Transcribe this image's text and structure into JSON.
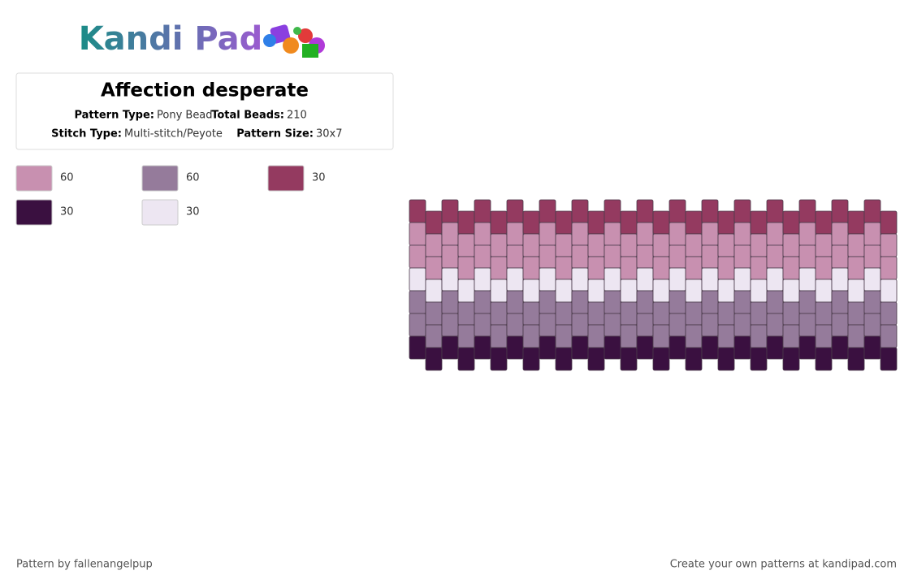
{
  "header": {
    "logo": "Kandi Pad"
  },
  "pattern": {
    "title": "Affection desperate",
    "info": [
      {
        "label": "Pattern Type:",
        "value": "Pony Bead"
      },
      {
        "label": "Total Beads:",
        "value": "210"
      },
      {
        "label": "Stitch Type:",
        "value": "Multi-stitch/Peyote"
      },
      {
        "label": "Pattern Size:",
        "value": "30x7"
      }
    ],
    "palette": [
      {
        "color": "#c890b0",
        "count": 60
      },
      {
        "color": "#957b9b",
        "count": 60
      },
      {
        "color": "#943a60",
        "count": 30
      },
      {
        "color": "#3a1040",
        "count": 30
      },
      {
        "color": "#ede6f2",
        "count": 30
      }
    ]
  },
  "footer": {
    "credit": "Pattern by fallenangelpup",
    "link": "Create your own patterns at kandipad.com"
  }
}
